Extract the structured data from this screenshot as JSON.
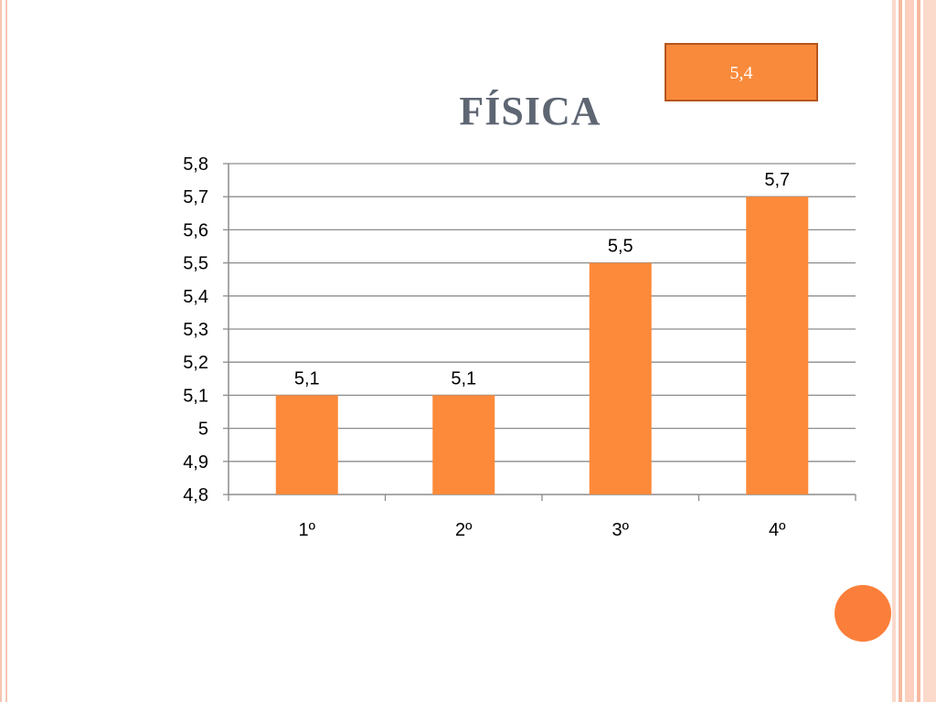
{
  "slide": {
    "badge_value": "5,4",
    "title": "FÍSICA"
  },
  "colors": {
    "bar": "#fd8a3a",
    "accent_dot": "#fb7f3a",
    "badge_fill": "#f98a3c",
    "title": "#5e6673"
  },
  "chart_data": {
    "type": "bar",
    "title": "",
    "categories": [
      "1º",
      "2º",
      "3º",
      "4º"
    ],
    "values": [
      5.1,
      5.1,
      5.5,
      5.7
    ],
    "data_labels": [
      "5,1",
      "5,1",
      "5,5",
      "5,7"
    ],
    "ylim": [
      4.8,
      5.8
    ],
    "yticks": [
      4.8,
      4.9,
      5.0,
      5.1,
      5.2,
      5.3,
      5.4,
      5.5,
      5.6,
      5.7,
      5.8
    ],
    "ytick_labels": [
      "4,8",
      "4,9",
      "5",
      "5,1",
      "5,2",
      "5,3",
      "5,4",
      "5,5",
      "5,6",
      "5,7",
      "5,8"
    ],
    "grid": true,
    "legend": "none"
  }
}
